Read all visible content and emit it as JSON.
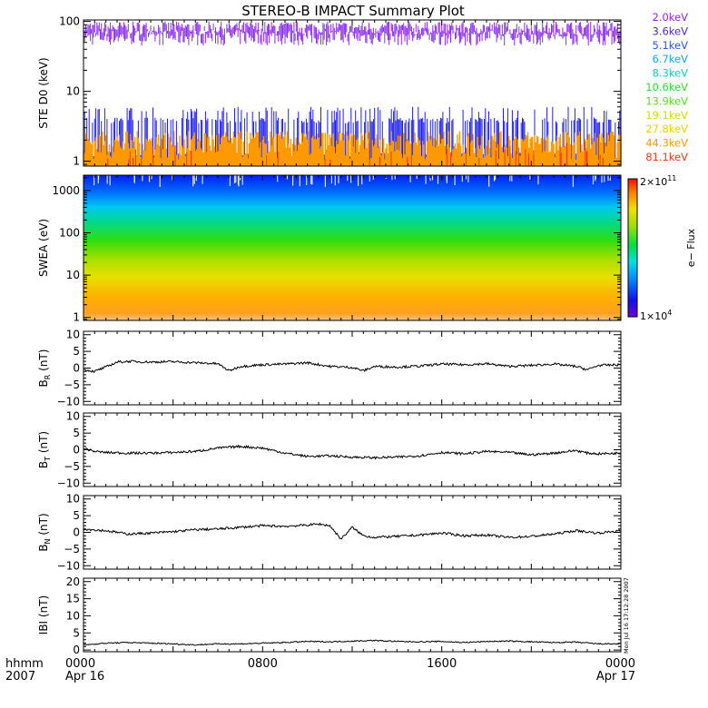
{
  "title": "STEREO-B IMPACT Summary Plot",
  "stamp": "Mon Jul 16 17:12:28 2007",
  "time_axis": {
    "label_line1": "hhmm",
    "label_line2": "2007",
    "ticks": [
      {
        "hour": 0,
        "label": "0000",
        "sublabel": "Apr 16"
      },
      {
        "hour": 8,
        "label": "0800",
        "sublabel": ""
      },
      {
        "hour": 16,
        "label": "1600",
        "sublabel": ""
      },
      {
        "hour": 24,
        "label": "0000",
        "sublabel": "Apr 17"
      }
    ]
  },
  "colorbar": {
    "label": "e− Flux",
    "max_base": "2×10",
    "max_exp": "11",
    "min_base": "1×10",
    "min_exp": "4"
  },
  "chart_data": [
    {
      "type": "line",
      "panel": "ste",
      "ylabel": "STE D0 (keV)",
      "yscale": "log",
      "ylim": [
        0.85,
        105
      ],
      "yticks": [
        {
          "v": 1,
          "label": "1"
        },
        {
          "v": 10,
          "label": "10"
        },
        {
          "v": 100,
          "label": "100"
        }
      ],
      "legend": [
        {
          "name": "2.0keV",
          "color": "#a020f0"
        },
        {
          "name": "3.6keV",
          "color": "#4b2ad6"
        },
        {
          "name": "5.1keV",
          "color": "#2a55ff"
        },
        {
          "name": "6.7keV",
          "color": "#1aa6e6"
        },
        {
          "name": "8.3keV",
          "color": "#11d0c0"
        },
        {
          "name": "10.6keV",
          "color": "#2ee02e"
        },
        {
          "name": "13.9keV",
          "color": "#55e025"
        },
        {
          "name": "19.1keV",
          "color": "#c8e000"
        },
        {
          "name": "27.8keV",
          "color": "#f0d000"
        },
        {
          "name": "44.3keV",
          "color": "#ff9a00"
        },
        {
          "name": "81.1keV",
          "color": "#ee3a1a"
        }
      ],
      "series": [
        {
          "color": "#8b2cf0",
          "band": [
            45,
            100
          ]
        },
        {
          "color": "#2020f0",
          "band": [
            1,
            6
          ]
        },
        {
          "color": "#ff9900",
          "band": [
            1,
            2.7
          ]
        }
      ]
    },
    {
      "type": "heatmap",
      "panel": "swea",
      "ylabel": "SWEA (eV)",
      "yscale": "log",
      "ylim": [
        0.85,
        2300
      ],
      "yticks": [
        {
          "v": 1,
          "label": "1"
        },
        {
          "v": 10,
          "label": "10"
        },
        {
          "v": 100,
          "label": "100"
        },
        {
          "v": 1000,
          "label": "1000"
        }
      ]
    },
    {
      "type": "line",
      "panel": "br",
      "ylabel": "B",
      "ysub": "R",
      "yunit": " (nT)",
      "ylim": [
        -11,
        11
      ],
      "yticks": [
        {
          "v": 10,
          "label": "10"
        },
        {
          "v": 5,
          "label": "5"
        },
        {
          "v": 0,
          "label": "0"
        },
        {
          "v": -5,
          "label": "−5"
        },
        {
          "v": -10,
          "label": "−10"
        }
      ],
      "x_hours": [
        0,
        0.5,
        1,
        1.5,
        2,
        3,
        4,
        5,
        6,
        6.5,
        7,
        8,
        9,
        10,
        11,
        12,
        12.5,
        13,
        14,
        15,
        16,
        17,
        18,
        19,
        20,
        21,
        22,
        22.5,
        23,
        24
      ],
      "values": [
        -0.5,
        -1,
        0.3,
        1.8,
        2,
        1.8,
        1.9,
        1.6,
        1.3,
        -0.8,
        0.5,
        1,
        1.2,
        1.6,
        0.5,
        0.2,
        -0.8,
        0.5,
        0.3,
        0.6,
        1.2,
        1,
        1.3,
        0.5,
        0.8,
        1.2,
        0.5,
        -0.5,
        0.8,
        1
      ]
    },
    {
      "type": "line",
      "panel": "bt",
      "ylabel": "B",
      "ysub": "T",
      "yunit": " (nT)",
      "ylim": [
        -11,
        11
      ],
      "yticks": [
        {
          "v": 10,
          "label": "10"
        },
        {
          "v": 5,
          "label": "5"
        },
        {
          "v": 0,
          "label": "0"
        },
        {
          "v": -5,
          "label": "−5"
        },
        {
          "v": -10,
          "label": "−10"
        }
      ],
      "x_hours": [
        0,
        0.5,
        1,
        2,
        3,
        4,
        5,
        6,
        7,
        8,
        9,
        10,
        11,
        12,
        13,
        14,
        15,
        16,
        17,
        18,
        19,
        20,
        21,
        22,
        22.5,
        23,
        24
      ],
      "values": [
        0.5,
        -0.5,
        -0.8,
        -1,
        -1,
        -0.8,
        -0.5,
        0.5,
        1,
        0.5,
        -1,
        -2,
        -1.8,
        -2.2,
        -2.4,
        -2.2,
        -1.8,
        -0.8,
        -1.2,
        -0.5,
        -0.8,
        -1.5,
        -1,
        -0.2,
        -1,
        -1.2,
        -1
      ]
    },
    {
      "type": "line",
      "panel": "bn",
      "ylabel": "B",
      "ysub": "N",
      "yunit": " (nT)",
      "ylim": [
        -11,
        11
      ],
      "yticks": [
        {
          "v": 10,
          "label": "10"
        },
        {
          "v": 5,
          "label": "5"
        },
        {
          "v": 0,
          "label": "0"
        },
        {
          "v": -5,
          "label": "−5"
        },
        {
          "v": -10,
          "label": "−10"
        }
      ],
      "x_hours": [
        0,
        1,
        2,
        3,
        4,
        5,
        6,
        7,
        8,
        9,
        10,
        10.5,
        11,
        11.5,
        12,
        12.5,
        13,
        14,
        15,
        16,
        17,
        18,
        19,
        20,
        21,
        22,
        23,
        24
      ],
      "values": [
        1,
        0.5,
        -0.5,
        -0.2,
        0.2,
        0.8,
        1,
        1.5,
        2,
        1.8,
        2.2,
        2.5,
        2,
        -2,
        1.5,
        -1,
        -1.5,
        -1.2,
        -0.8,
        -0.2,
        -1,
        -0.8,
        -1.5,
        -1.2,
        -0.5,
        0.5,
        -0.2,
        0.5
      ]
    },
    {
      "type": "line",
      "panel": "bmag",
      "ylabel": "IBI (nT)",
      "ylim": [
        -0.5,
        21
      ],
      "yticks": [
        {
          "v": 20,
          "label": "20"
        },
        {
          "v": 15,
          "label": "15"
        },
        {
          "v": 10,
          "label": "10"
        },
        {
          "v": 5,
          "label": "5"
        },
        {
          "v": 0,
          "label": "0"
        }
      ],
      "x_hours": [
        0,
        1,
        2,
        3,
        4,
        5,
        6,
        7,
        8,
        9,
        10,
        11,
        12,
        13,
        14,
        15,
        16,
        17,
        18,
        19,
        20,
        21,
        22,
        23,
        24
      ],
      "values": [
        1.5,
        2,
        2.2,
        2,
        1.8,
        1.5,
        1.8,
        1.8,
        2,
        2.2,
        2.5,
        2.4,
        2.6,
        2.8,
        2.5,
        2.4,
        2.5,
        2.2,
        2.5,
        2.6,
        2.4,
        2.2,
        2.3,
        1.8,
        1.8
      ]
    }
  ]
}
